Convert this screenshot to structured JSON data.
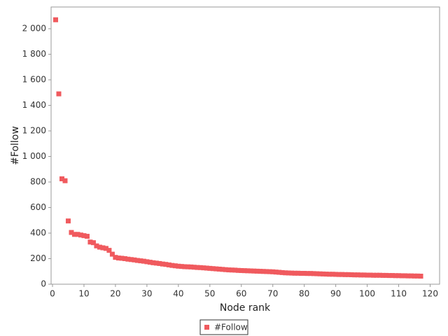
{
  "chart_data": {
    "type": "scatter",
    "xlabel": "Node rank",
    "ylabel": "#Follow",
    "x": [
      1,
      2,
      3,
      4,
      5,
      6,
      7,
      8,
      9,
      10,
      11,
      12,
      13,
      14,
      15,
      16,
      17,
      18,
      19,
      20,
      21,
      22,
      23,
      24,
      25,
      26,
      27,
      28,
      29,
      30,
      31,
      32,
      33,
      34,
      35,
      36,
      37,
      38,
      39,
      40,
      41,
      42,
      43,
      44,
      45,
      46,
      47,
      48,
      49,
      50,
      51,
      52,
      53,
      54,
      55,
      56,
      57,
      58,
      59,
      60,
      61,
      62,
      63,
      64,
      65,
      66,
      67,
      68,
      69,
      70,
      71,
      72,
      73,
      74,
      75,
      76,
      77,
      78,
      79,
      80,
      81,
      82,
      83,
      84,
      85,
      86,
      87,
      88,
      89,
      90,
      91,
      92,
      93,
      94,
      95,
      96,
      97,
      98,
      99,
      100,
      101,
      102,
      103,
      104,
      105,
      106,
      107,
      108,
      109,
      110,
      111,
      112,
      113,
      114,
      115,
      116,
      117
    ],
    "series": [
      {
        "name": "#Follow",
        "color": "#f05a5e",
        "values": [
          2070,
          1490,
          825,
          810,
          495,
          405,
          390,
          390,
          385,
          380,
          375,
          330,
          325,
          300,
          290,
          285,
          280,
          265,
          235,
          210,
          205,
          203,
          200,
          196,
          193,
          190,
          186,
          183,
          180,
          176,
          172,
          168,
          165,
          162,
          158,
          155,
          151,
          147,
          144,
          141,
          139,
          137,
          136,
          135,
          133,
          131,
          130,
          128,
          126,
          124,
          122,
          120,
          118,
          116,
          114,
          112,
          111,
          110,
          108,
          107,
          106,
          105,
          104,
          103,
          102,
          101,
          100,
          99,
          98,
          97,
          95,
          93,
          91,
          89,
          88,
          87,
          86,
          86,
          85,
          85,
          84,
          84,
          83,
          82,
          81,
          80,
          79,
          78,
          78,
          77,
          76,
          76,
          75,
          75,
          74,
          73,
          73,
          72,
          72,
          71,
          71,
          70,
          70,
          70,
          69,
          69,
          68,
          68,
          67,
          67,
          66,
          66,
          65,
          65,
          64,
          64,
          63
        ]
      }
    ],
    "xlim": [
      0,
      123
    ],
    "ylim": [
      0,
      2170
    ],
    "xticks": [
      0,
      10,
      20,
      30,
      40,
      50,
      60,
      70,
      80,
      90,
      100,
      110,
      120
    ],
    "yticks": [
      0,
      200,
      400,
      600,
      800,
      {
        "value": 1000,
        "label": "1 000"
      },
      {
        "value": 1200,
        "label": "1 200"
      },
      {
        "value": 1400,
        "label": "1 400"
      },
      {
        "value": 1600,
        "label": "1 600"
      },
      {
        "value": 1800,
        "label": "1 800"
      },
      {
        "value": 2000,
        "label": "2 000"
      }
    ],
    "legend": "bottom"
  }
}
